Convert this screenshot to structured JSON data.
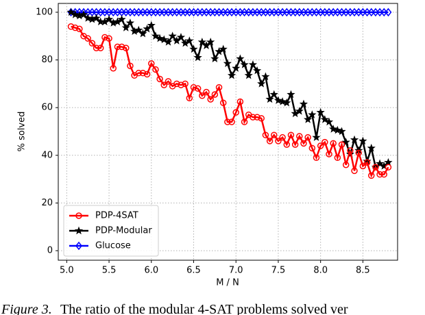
{
  "chart_data": {
    "type": "line",
    "xlabel": "M / N",
    "ylabel": "% solved",
    "x": [
      5.05,
      5.1,
      5.15,
      5.2,
      5.25,
      5.3,
      5.35,
      5.4,
      5.45,
      5.5,
      5.55,
      5.6,
      5.65,
      5.7,
      5.75,
      5.8,
      5.85,
      5.9,
      5.95,
      6.0,
      6.05,
      6.1,
      6.15,
      6.2,
      6.25,
      6.3,
      6.35,
      6.4,
      6.45,
      6.5,
      6.55,
      6.6,
      6.65,
      6.7,
      6.75,
      6.8,
      6.85,
      6.9,
      6.95,
      7.0,
      7.05,
      7.1,
      7.15,
      7.2,
      7.25,
      7.3,
      7.35,
      7.4,
      7.45,
      7.5,
      7.55,
      7.6,
      7.65,
      7.7,
      7.75,
      7.8,
      7.85,
      7.9,
      7.95,
      8.0,
      8.05,
      8.1,
      8.15,
      8.2,
      8.25,
      8.3,
      8.35,
      8.4,
      8.45,
      8.5,
      8.55,
      8.6,
      8.65,
      8.7,
      8.75,
      8.8
    ],
    "series": [
      {
        "name": "PDP-4SAT",
        "color": "#ff0000",
        "marker": "circle",
        "values": [
          94,
          93.5,
          93,
          90,
          89,
          87,
          85,
          85,
          89.5,
          89,
          76.5,
          85.5,
          85.5,
          85,
          77.5,
          73.5,
          74.5,
          74.5,
          74,
          78.5,
          76,
          72,
          69.5,
          71,
          69,
          70,
          69.5,
          70,
          64,
          68.5,
          68,
          65,
          66.5,
          63.5,
          65.5,
          68.5,
          62,
          54,
          54,
          58,
          62.5,
          54,
          57,
          56,
          56,
          55.5,
          48.5,
          46,
          48.5,
          46,
          47.5,
          44.5,
          48.5,
          44.5,
          48,
          45,
          47.5,
          43,
          39,
          44,
          45.5,
          40.5,
          45,
          39,
          44.5,
          36,
          42,
          33.5,
          41,
          35.5,
          37,
          31.5,
          35,
          32,
          32,
          35
        ]
      },
      {
        "name": "PDP-Modular",
        "color": "#000000",
        "marker": "star",
        "values": [
          100,
          99,
          98.5,
          99,
          97.5,
          97,
          97.5,
          96,
          96,
          97,
          95.5,
          96,
          97,
          93.5,
          95.5,
          92,
          92.5,
          91,
          93,
          94.5,
          90,
          89,
          88.5,
          87.5,
          90,
          88,
          89.5,
          87,
          88,
          84.5,
          81,
          87.5,
          86,
          87.5,
          80.5,
          83.5,
          84.5,
          78.5,
          73.5,
          76.5,
          80.5,
          78,
          73.5,
          78,
          75.5,
          70,
          73,
          63.5,
          65.5,
          63,
          62.5,
          62,
          65.5,
          57.5,
          58.5,
          61.5,
          55,
          57,
          47.5,
          58,
          55,
          54,
          51,
          50.5,
          50,
          45.5,
          40.5,
          46.5,
          42,
          46,
          37.5,
          43,
          35,
          36.5,
          35.5,
          37
        ]
      },
      {
        "name": "Glucose",
        "color": "#0000ff",
        "marker": "diamond",
        "values": [
          100,
          100,
          100,
          100,
          100,
          100,
          100,
          100,
          100,
          100,
          100,
          100,
          100,
          100,
          100,
          100,
          100,
          100,
          100,
          100,
          100,
          100,
          100,
          100,
          100,
          100,
          100,
          100,
          100,
          100,
          100,
          100,
          100,
          100,
          100,
          100,
          100,
          100,
          100,
          100,
          100,
          100,
          100,
          100,
          100,
          100,
          100,
          100,
          100,
          100,
          100,
          100,
          100,
          100,
          100,
          100,
          100,
          100,
          100,
          100,
          100,
          100,
          100,
          100,
          100,
          100,
          100,
          100,
          100,
          100,
          100,
          100,
          100,
          100,
          100,
          100
        ]
      }
    ],
    "xlim": [
      4.9,
      8.91
    ],
    "ylim": [
      -4,
      103.7
    ],
    "xticks": [
      {
        "value": 5,
        "label": "5.0"
      },
      {
        "value": 5.5,
        "label": "5.5"
      },
      {
        "value": 6,
        "label": "6.0"
      },
      {
        "value": 6.5,
        "label": "6.5"
      },
      {
        "value": 7,
        "label": "7.0"
      },
      {
        "value": 7.5,
        "label": "7.5"
      },
      {
        "value": 8,
        "label": "8.0"
      },
      {
        "value": 8.5,
        "label": "8.5"
      }
    ],
    "yticks": [
      0,
      20,
      40,
      60,
      80,
      100
    ],
    "grid": true,
    "legend": "lower left"
  },
  "caption_label": "Figure 3.",
  "caption": "The ratio of the modular 4-SAT problems solved ver"
}
